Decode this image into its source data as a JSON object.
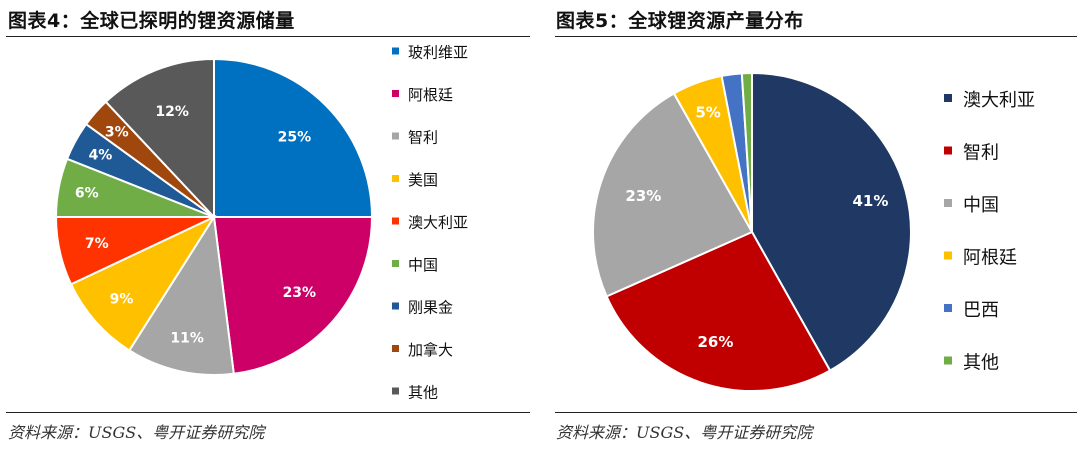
{
  "figures": [
    {
      "title": "图表4：全球已探明的锂资源储量",
      "source": "资料来源：USGS、粤开证券研究院"
    },
    {
      "title": "图表5：全球锂资源产量分布",
      "source": "资料来源：USGS、粤开证券研究院"
    }
  ],
  "chart_data": [
    {
      "type": "pie",
      "title": "图表4：全球已探明的锂资源储量",
      "legend_position": "right",
      "categories": [
        "玻利维亚",
        "阿根廷",
        "智利",
        "美国",
        "澳大利亚",
        "中国",
        "刚果金",
        "加拿大",
        "其他"
      ],
      "values": [
        25,
        23,
        11,
        9,
        7,
        6,
        4,
        3,
        12
      ],
      "data_labels": [
        "25%",
        "23%",
        "11%",
        "9%",
        "7%",
        "6%",
        "4%",
        "3%",
        "12%"
      ],
      "colors": [
        "#0070C0",
        "#CC0066",
        "#A6A6A6",
        "#FFC000",
        "#FF3300",
        "#70AD47",
        "#1F5A96",
        "#A0470E",
        "#595959"
      ],
      "label_colors": [
        "#ffffff",
        "#ffffff",
        "#ffffff",
        "#ffffff",
        "#ffffff",
        "#ffffff",
        "#ffffff",
        "#ffffff",
        "#ffffff"
      ]
    },
    {
      "type": "pie",
      "title": "图表5：全球锂资源产量分布",
      "legend_position": "right",
      "categories": [
        "澳大利亚",
        "智利",
        "中国",
        "阿根廷",
        "巴西",
        "其他"
      ],
      "values": [
        41,
        26,
        23,
        5,
        2,
        1
      ],
      "data_labels": [
        "41%",
        "26%",
        "23%",
        "5%",
        "",
        ""
      ],
      "colors": [
        "#1F3864",
        "#C00000",
        "#A6A6A6",
        "#FFC000",
        "#4472C4",
        "#70AD47"
      ],
      "label_colors": [
        "#ffffff",
        "#ffffff",
        "#ffffff",
        "#ffffff",
        "#ffffff",
        "#ffffff"
      ]
    }
  ]
}
